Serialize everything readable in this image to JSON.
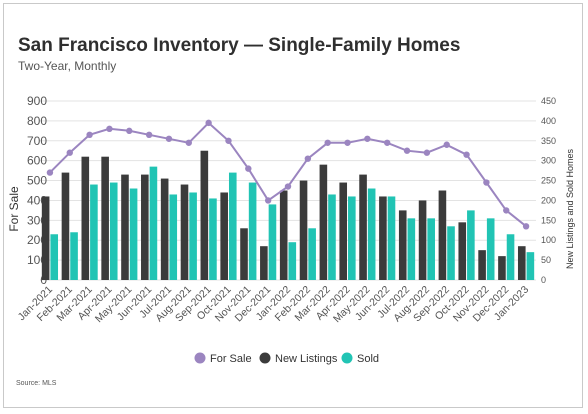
{
  "header": {
    "title": "San Francisco Inventory — Single-Family Homes",
    "subtitle": "Two-Year, Monthly"
  },
  "footer": {
    "source": "Source: MLS"
  },
  "colors": {
    "for_sale": "#9b85c0",
    "new_listings": "#3b3b3b",
    "sold": "#21c4b4",
    "grid": "#e3e3e3"
  },
  "chart_data": {
    "type": "bar",
    "categories": [
      "Jan-2021",
      "Feb-2021",
      "Mar-2021",
      "Apr-2021",
      "May-2021",
      "Jun-2021",
      "Jul-2021",
      "Aug-2021",
      "Sep-2021",
      "Oct-2021",
      "Nov-2021",
      "Dec-2021",
      "Jan-2022",
      "Feb-2022",
      "Mar-2022",
      "Apr-2022",
      "May-2022",
      "Jun-2022",
      "Jul-2022",
      "Aug-2022",
      "Sep-2022",
      "Oct-2022",
      "Nov-2022",
      "Dec-2022",
      "Jan-2023"
    ],
    "series": [
      {
        "name": "For Sale",
        "type": "line",
        "axis": "left",
        "color": "#9b85c0",
        "values": [
          540,
          640,
          730,
          760,
          750,
          730,
          710,
          690,
          790,
          700,
          560,
          400,
          470,
          610,
          690,
          690,
          710,
          690,
          650,
          640,
          680,
          630,
          490,
          350,
          270
        ]
      },
      {
        "name": "New Listings",
        "type": "bar",
        "axis": "right",
        "color": "#3b3b3b",
        "values": [
          210,
          270,
          310,
          310,
          265,
          265,
          255,
          240,
          325,
          220,
          130,
          85,
          225,
          250,
          290,
          245,
          265,
          210,
          175,
          200,
          225,
          145,
          75,
          60,
          85
        ]
      },
      {
        "name": "Sold",
        "type": "bar",
        "axis": "right",
        "color": "#21c4b4",
        "values": [
          115,
          120,
          240,
          245,
          230,
          285,
          215,
          220,
          205,
          270,
          245,
          190,
          95,
          130,
          215,
          210,
          230,
          210,
          155,
          155,
          135,
          175,
          155,
          115,
          70
        ]
      }
    ],
    "y_left": {
      "label": "For Sale",
      "ticks": [
        "900",
        "800",
        "700",
        "600",
        "500",
        "400",
        "300",
        "200",
        "100",
        "0"
      ],
      "range": [
        0,
        900
      ]
    },
    "y_right": {
      "label": "New Listings and Sold Homes",
      "ticks": [
        "450",
        "400",
        "350",
        "300",
        "250",
        "200",
        "150",
        "100",
        "50",
        "0"
      ],
      "range": [
        0,
        450
      ]
    },
    "grid": true,
    "legend_position": "bottom",
    "legend": [
      "For Sale",
      "New Listings",
      "Sold"
    ]
  }
}
